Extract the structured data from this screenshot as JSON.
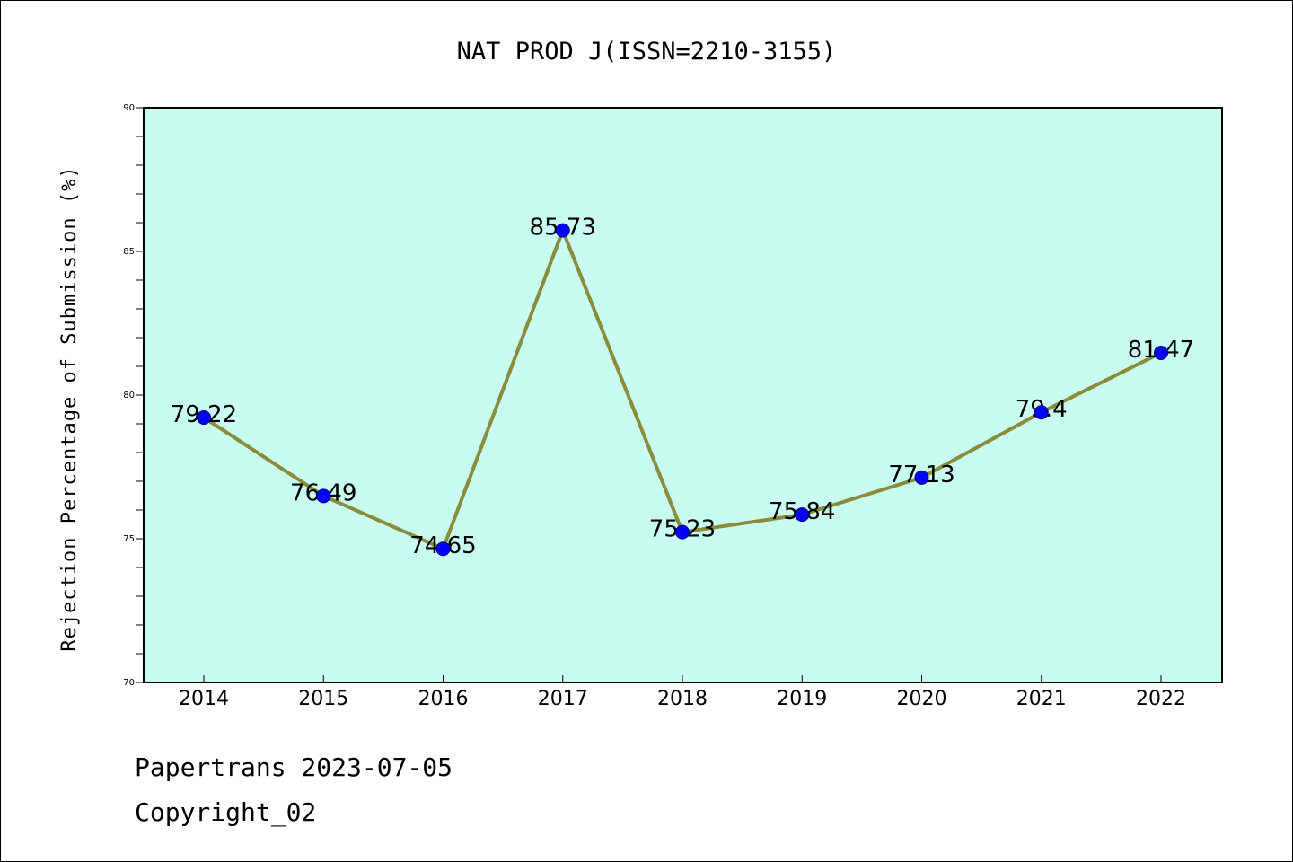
{
  "footer": {
    "line1": "Papertrans 2023-07-05",
    "line2": "Copyright_02"
  },
  "chart_data": {
    "type": "line",
    "title": "NAT PROD J(ISSN=2210-3155)",
    "xlabel": "",
    "ylabel": "Rejection Percentage of Submission (%)",
    "categories": [
      "2014",
      "2015",
      "2016",
      "2017",
      "2018",
      "2019",
      "2020",
      "2021",
      "2022"
    ],
    "series": [
      {
        "values": [
          79.22,
          76.49,
          74.65,
          85.73,
          75.23,
          75.84,
          77.13,
          79.4,
          81.47
        ],
        "labels": [
          "79.22",
          "76.49",
          "74.65",
          "85.73",
          "75.23",
          "75.84",
          "77.13",
          "79.4",
          "81.47"
        ]
      }
    ],
    "ylim": [
      70,
      90
    ],
    "yticks": [
      "70",
      "75",
      "80",
      "85",
      "90"
    ],
    "grid": false,
    "colors": {
      "plot_background": "#c7fcee",
      "line": "#8b8b3c",
      "marker": "#0000ff"
    }
  }
}
